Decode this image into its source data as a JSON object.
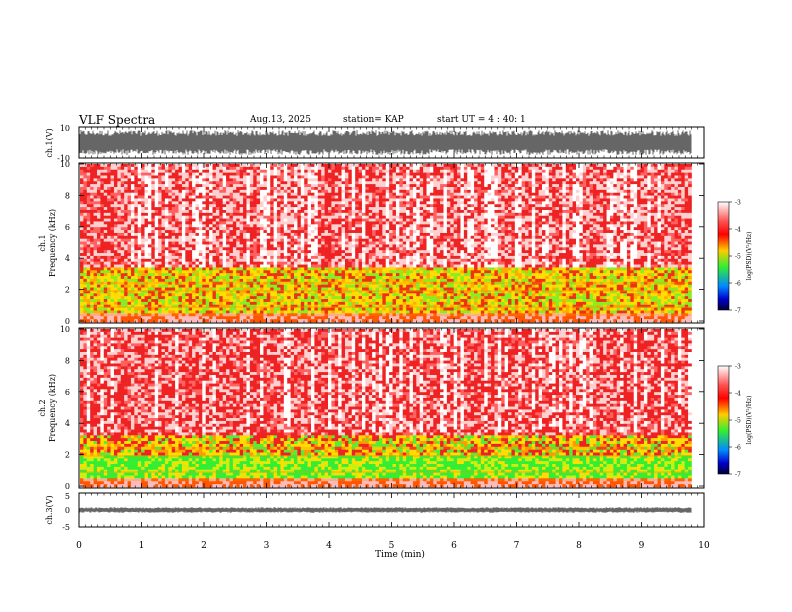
{
  "header": {
    "title": "VLF Spectra",
    "date": "Aug.13, 2025",
    "station": "station= KAP",
    "start_ut": "start  UT =   4 : 40: 1"
  },
  "chart_data": [
    {
      "name": "ch1-waveform",
      "type": "line",
      "ylabel": "ch.1(V)",
      "ylim": [
        -10,
        10
      ],
      "yticks": [
        "10",
        "-10"
      ],
      "xlim": [
        0,
        10
      ],
      "description_values": {
        "typical_min": -8,
        "typical_max": 8
      }
    },
    {
      "name": "ch1-spectrogram",
      "type": "heatmap",
      "ylabel": "ch.1 Frequency (kHz)",
      "ylim": [
        0,
        10
      ],
      "yticks": [
        "0",
        "2",
        "4",
        "6",
        "8",
        "10"
      ],
      "xlim": [
        0,
        9.8
      ],
      "colorbar": {
        "label": "log(PSD)(V²/Hz)",
        "range": [
          -7,
          -3
        ],
        "ticks": [
          "-3",
          "-4",
          "-5",
          "-6",
          "-7"
        ]
      }
    },
    {
      "name": "ch2-spectrogram",
      "type": "heatmap",
      "ylabel": "ch.2 Frequency (kHz)",
      "ylim": [
        0,
        10
      ],
      "yticks": [
        "0",
        "2",
        "4",
        "6",
        "8",
        "10"
      ],
      "xlim": [
        0,
        9.8
      ],
      "colorbar": {
        "label": "log(PSD)(V²/Hz)",
        "range": [
          -7,
          -3
        ],
        "ticks": [
          "-3",
          "-4",
          "-5",
          "-6",
          "-7"
        ]
      }
    },
    {
      "name": "ch3-waveform",
      "type": "line",
      "ylabel": "ch.3(V)",
      "ylim": [
        -5,
        5
      ],
      "yticks": [
        "5",
        "0",
        "-5"
      ],
      "xlim": [
        0,
        10
      ],
      "description_values": {
        "typical_min": -0.8,
        "typical_max": 0.8
      }
    }
  ],
  "xaxis": {
    "label": "Time  (min)",
    "ticks": [
      "0",
      "1",
      "2",
      "3",
      "4",
      "5",
      "6",
      "7",
      "8",
      "9",
      "10"
    ]
  },
  "colors": {
    "waveform": "#000000",
    "spec_high": "#ee1111",
    "spec_mid": "#ffdd00",
    "spec_low": "#22ee22",
    "axis": "#000000"
  }
}
